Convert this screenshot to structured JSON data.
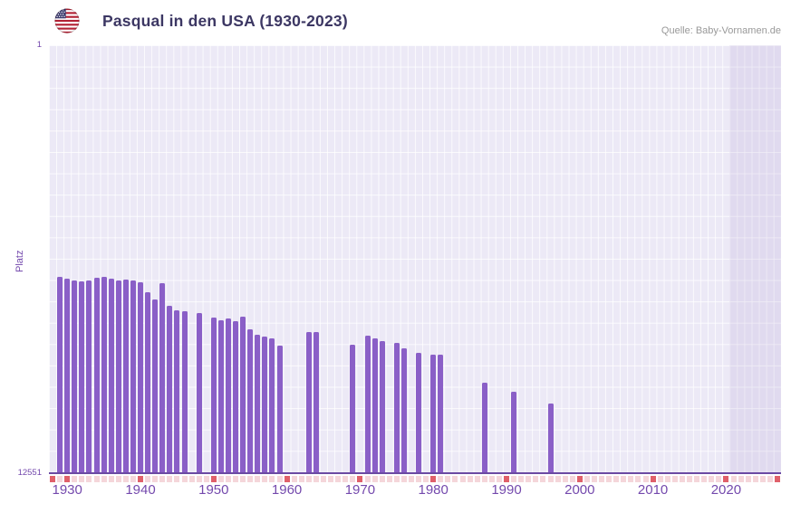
{
  "header": {
    "title": "Pasqual in den USA (1930-2023)",
    "source": "Quelle: Baby-Vornamen.de",
    "flag_icon": "us-flag-icon"
  },
  "chart": {
    "ylabel": "Platz",
    "y_top_label": "1",
    "y_bottom_label": "12551",
    "x_ticks": [
      1930,
      1940,
      1950,
      1960,
      1970,
      1980,
      1990,
      2000,
      2010,
      2020
    ],
    "colors": {
      "bar": "#8a5fc7",
      "plot_bg": "#ece9f6",
      "axis": "#6b4aa3",
      "tick_decade": "#e0606a",
      "tick_minor": "#f5d6da",
      "title": "#3c3763",
      "labels": "#7449ad",
      "source": "#999999",
      "band": "rgba(118,90,175,0.10)"
    }
  },
  "chart_data": {
    "type": "bar",
    "title": "Pasqual in den USA (1930-2023)",
    "xlabel": "",
    "ylabel": "Platz",
    "x_range": [
      1928,
      2028
    ],
    "ylim": [
      12551,
      1
    ],
    "y_axis_inverted": true,
    "grid": true,
    "legend": false,
    "recent_band_start": 2021,
    "points": [
      {
        "year": 1929,
        "rank": 6800
      },
      {
        "year": 1930,
        "rank": 6850
      },
      {
        "year": 1931,
        "rank": 6900
      },
      {
        "year": 1932,
        "rank": 6950
      },
      {
        "year": 1933,
        "rank": 6900
      },
      {
        "year": 1934,
        "rank": 6820
      },
      {
        "year": 1935,
        "rank": 6800
      },
      {
        "year": 1936,
        "rank": 6860
      },
      {
        "year": 1937,
        "rank": 6900
      },
      {
        "year": 1938,
        "rank": 6880
      },
      {
        "year": 1939,
        "rank": 6900
      },
      {
        "year": 1940,
        "rank": 6960
      },
      {
        "year": 1941,
        "rank": 7250
      },
      {
        "year": 1942,
        "rank": 7470
      },
      {
        "year": 1943,
        "rank": 7000
      },
      {
        "year": 1944,
        "rank": 7650
      },
      {
        "year": 1945,
        "rank": 7800
      },
      {
        "year": 1946,
        "rank": 7820
      },
      {
        "year": 1948,
        "rank": 7870
      },
      {
        "year": 1950,
        "rank": 8000
      },
      {
        "year": 1951,
        "rank": 8080
      },
      {
        "year": 1952,
        "rank": 8030
      },
      {
        "year": 1953,
        "rank": 8100
      },
      {
        "year": 1954,
        "rank": 7980
      },
      {
        "year": 1955,
        "rank": 8350
      },
      {
        "year": 1956,
        "rank": 8500
      },
      {
        "year": 1957,
        "rank": 8560
      },
      {
        "year": 1958,
        "rank": 8620
      },
      {
        "year": 1959,
        "rank": 8820
      },
      {
        "year": 1963,
        "rank": 8420
      },
      {
        "year": 1964,
        "rank": 8420
      },
      {
        "year": 1969,
        "rank": 8790
      },
      {
        "year": 1971,
        "rank": 8530
      },
      {
        "year": 1972,
        "rank": 8610
      },
      {
        "year": 1973,
        "rank": 8690
      },
      {
        "year": 1975,
        "rank": 8740
      },
      {
        "year": 1976,
        "rank": 8900
      },
      {
        "year": 1978,
        "rank": 9030
      },
      {
        "year": 1980,
        "rank": 9080
      },
      {
        "year": 1981,
        "rank": 9080
      },
      {
        "year": 1987,
        "rank": 9930
      },
      {
        "year": 1991,
        "rank": 10170
      },
      {
        "year": 1996,
        "rank": 10540
      }
    ]
  }
}
